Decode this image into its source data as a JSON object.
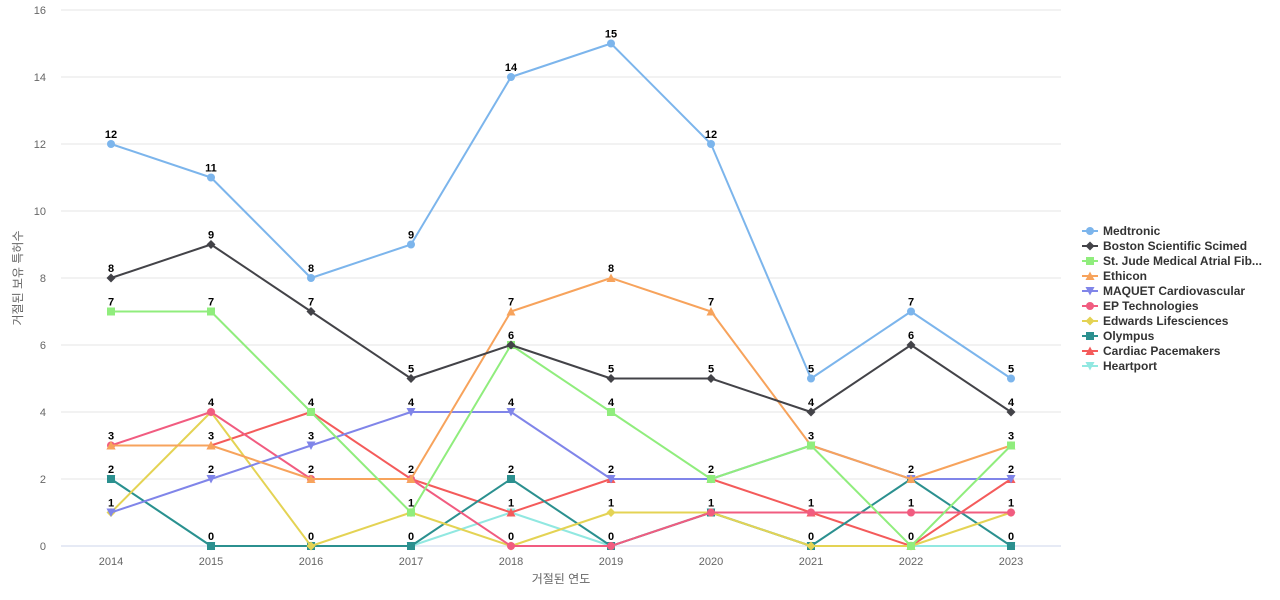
{
  "chart_data": {
    "type": "line",
    "title": "",
    "xlabel": "거절된 연도",
    "ylabel": "거절된 보유 특허수",
    "categories": [
      "2014",
      "2015",
      "2016",
      "2017",
      "2018",
      "2019",
      "2020",
      "2021",
      "2022",
      "2023"
    ],
    "ylim": [
      0,
      16
    ],
    "yticks": [
      0,
      2,
      4,
      6,
      8,
      10,
      12,
      14,
      16
    ],
    "grid": true,
    "legend_position": "right",
    "series": [
      {
        "name": "Medtronic",
        "color": "#7cb5ec",
        "marker": "circle",
        "values": [
          12,
          11,
          8,
          9,
          14,
          15,
          12,
          5,
          7,
          5
        ]
      },
      {
        "name": "Boston Scientific Scimed",
        "color": "#434348",
        "marker": "diamond",
        "values": [
          8,
          9,
          7,
          5,
          6,
          5,
          5,
          4,
          6,
          4
        ]
      },
      {
        "name": "St. Jude Medical Atrial Fib...",
        "color": "#90ed7d",
        "marker": "square",
        "values": [
          7,
          7,
          4,
          1,
          6,
          4,
          2,
          3,
          0,
          3
        ]
      },
      {
        "name": "Ethicon",
        "color": "#f7a35c",
        "marker": "triangle",
        "values": [
          3,
          3,
          2,
          2,
          7,
          8,
          7,
          3,
          2,
          3
        ]
      },
      {
        "name": "MAQUET Cardiovascular",
        "color": "#8085e9",
        "marker": "triangle-down",
        "values": [
          1,
          2,
          3,
          4,
          4,
          2,
          2,
          3,
          2,
          2
        ]
      },
      {
        "name": "EP Technologies",
        "color": "#f15c80",
        "marker": "circle",
        "values": [
          3,
          4,
          2,
          2,
          0,
          0,
          1,
          1,
          1,
          1
        ]
      },
      {
        "name": "Edwards Lifesciences",
        "color": "#e4d354",
        "marker": "diamond",
        "values": [
          1,
          4,
          0,
          1,
          0,
          1,
          1,
          0,
          0,
          1
        ]
      },
      {
        "name": "Olympus",
        "color": "#2b908f",
        "marker": "square",
        "values": [
          2,
          0,
          0,
          0,
          2,
          0,
          1,
          0,
          2,
          0
        ]
      },
      {
        "name": "Cardiac Pacemakers",
        "color": "#f45b5b",
        "marker": "triangle",
        "values": [
          3,
          3,
          4,
          2,
          1,
          2,
          2,
          1,
          0,
          2
        ]
      },
      {
        "name": "Heartport",
        "color": "#91e8e1",
        "marker": "triangle-down",
        "values": [
          2,
          0,
          0,
          0,
          1,
          0,
          1,
          0,
          0,
          0
        ]
      }
    ],
    "data_labels": [
      {
        "category": "2014",
        "values": [
          12,
          8,
          7,
          3,
          2,
          1
        ]
      },
      {
        "category": "2015",
        "values": [
          11,
          9,
          7,
          4,
          3,
          2,
          0
        ]
      },
      {
        "category": "2016",
        "values": [
          8,
          7,
          4,
          3,
          2,
          0
        ]
      },
      {
        "category": "2017",
        "values": [
          9,
          5,
          4,
          2,
          1,
          0
        ]
      },
      {
        "category": "2018",
        "values": [
          14,
          7,
          6,
          4,
          2,
          1,
          0
        ]
      },
      {
        "category": "2019",
        "values": [
          15,
          8,
          5,
          4,
          2,
          1,
          0
        ]
      },
      {
        "category": "2020",
        "values": [
          12,
          7,
          5,
          2,
          1
        ]
      },
      {
        "category": "2021",
        "values": [
          5,
          4,
          3,
          1,
          0
        ]
      },
      {
        "category": "2022",
        "values": [
          7,
          6,
          2,
          1,
          0
        ]
      },
      {
        "category": "2023",
        "values": [
          5,
          4,
          3,
          2,
          1,
          0
        ]
      }
    ]
  }
}
